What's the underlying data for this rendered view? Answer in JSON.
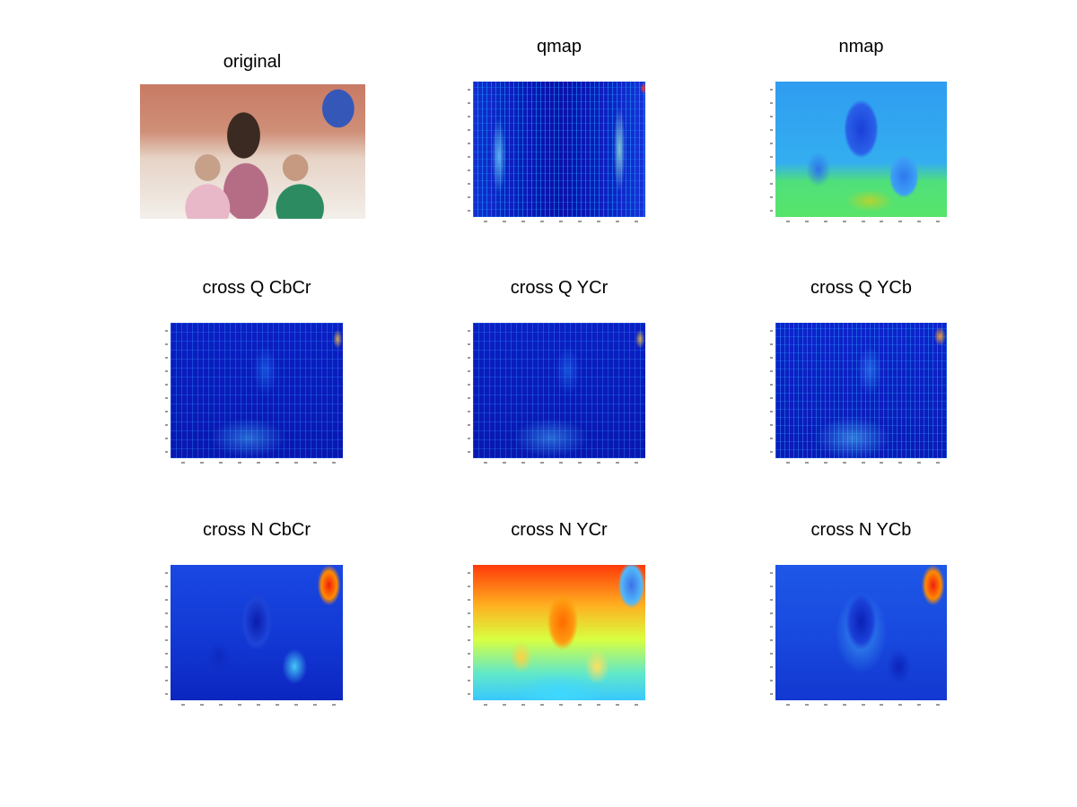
{
  "panels": [
    {
      "id": "original",
      "title": "original",
      "icon": "photo-image"
    },
    {
      "id": "qmap",
      "title": "qmap",
      "icon": "heatmap-image"
    },
    {
      "id": "nmap",
      "title": "nmap",
      "icon": "heatmap-image"
    },
    {
      "id": "crossq_cbcr",
      "title": "cross Q CbCr",
      "icon": "heatmap-image"
    },
    {
      "id": "crossq_ycr",
      "title": "cross Q YCr",
      "icon": "heatmap-image"
    },
    {
      "id": "crossq_ycb",
      "title": "cross Q YCb",
      "icon": "heatmap-image"
    },
    {
      "id": "crossn_cbcr",
      "title": "cross N CbCr",
      "icon": "heatmap-image"
    },
    {
      "id": "crossn_ycr",
      "title": "cross N YCr",
      "icon": "heatmap-image"
    },
    {
      "id": "crossn_ycb",
      "title": "cross N YCb",
      "icon": "heatmap-image"
    }
  ],
  "colors": {
    "background": "#ffffff",
    "title_text": "#000000"
  }
}
